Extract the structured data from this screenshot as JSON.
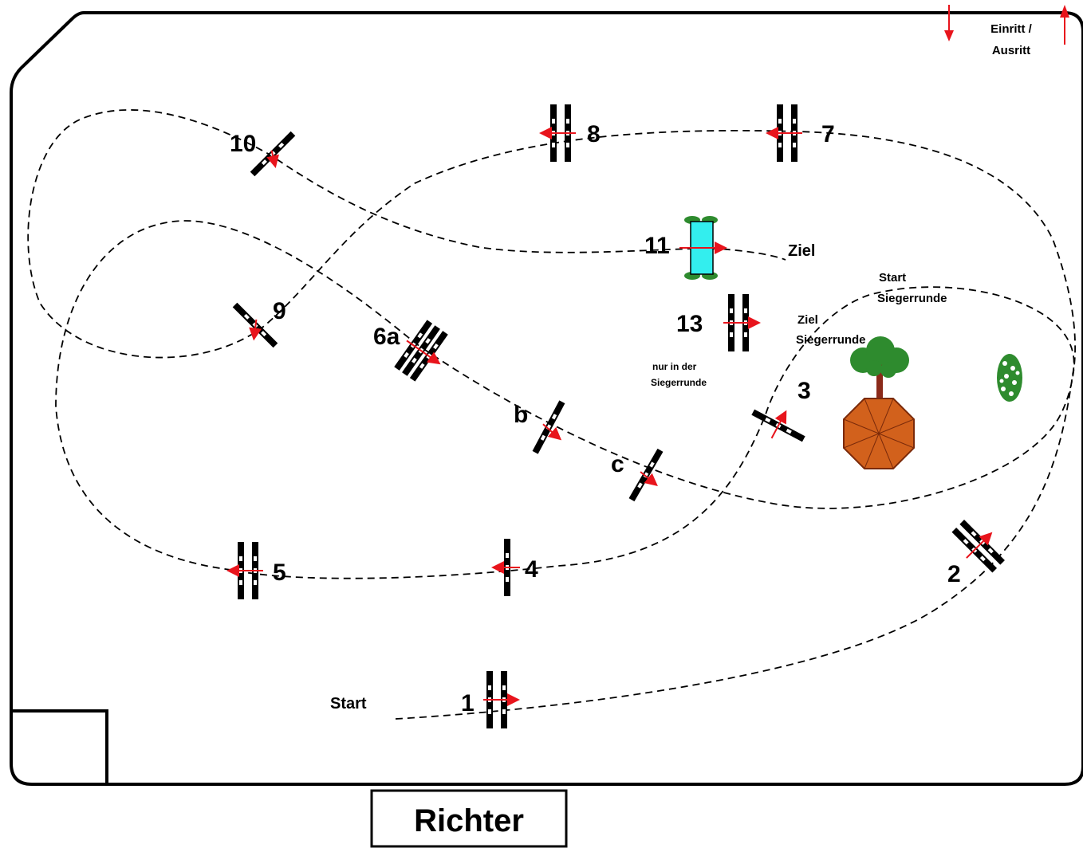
{
  "entrance": {
    "label_line1": "Einritt /",
    "label_line2": "Ausritt"
  },
  "judge_box": {
    "label": "Richter"
  },
  "labels": {
    "start": "Start",
    "finish": "Ziel",
    "start_jumpoff_line1": "Start",
    "start_jumpoff_line2": "Siegerrunde",
    "finish_jumpoff_line1": "Ziel",
    "finish_jumpoff_line2": "Siegerrunde",
    "jumpoff_only_line1": "nur in der",
    "jumpoff_only_line2": "Siegerrunde"
  },
  "obstacles": [
    {
      "id": "1",
      "label": "1",
      "type": "oxer"
    },
    {
      "id": "2",
      "label": "2",
      "type": "oxer"
    },
    {
      "id": "3",
      "label": "3",
      "type": "vertical"
    },
    {
      "id": "4",
      "label": "4",
      "type": "vertical"
    },
    {
      "id": "5",
      "label": "5",
      "type": "oxer"
    },
    {
      "id": "6a",
      "label": "6a",
      "type": "triple-bar"
    },
    {
      "id": "6b",
      "label": "b",
      "type": "vertical"
    },
    {
      "id": "6c",
      "label": "c",
      "type": "vertical"
    },
    {
      "id": "7",
      "label": "7",
      "type": "oxer"
    },
    {
      "id": "8",
      "label": "8",
      "type": "oxer"
    },
    {
      "id": "9",
      "label": "9",
      "type": "vertical"
    },
    {
      "id": "10",
      "label": "10",
      "type": "vertical"
    },
    {
      "id": "11",
      "label": "11",
      "type": "water"
    },
    {
      "id": "13",
      "label": "13",
      "type": "oxer"
    }
  ],
  "decor": [
    "tree-icon",
    "parasol-icon",
    "bush-icon"
  ],
  "colors": {
    "arrow": "#e8141c",
    "water": "#33eeee",
    "hedge": "#2e8b2e",
    "parasol": "#d2611c"
  }
}
